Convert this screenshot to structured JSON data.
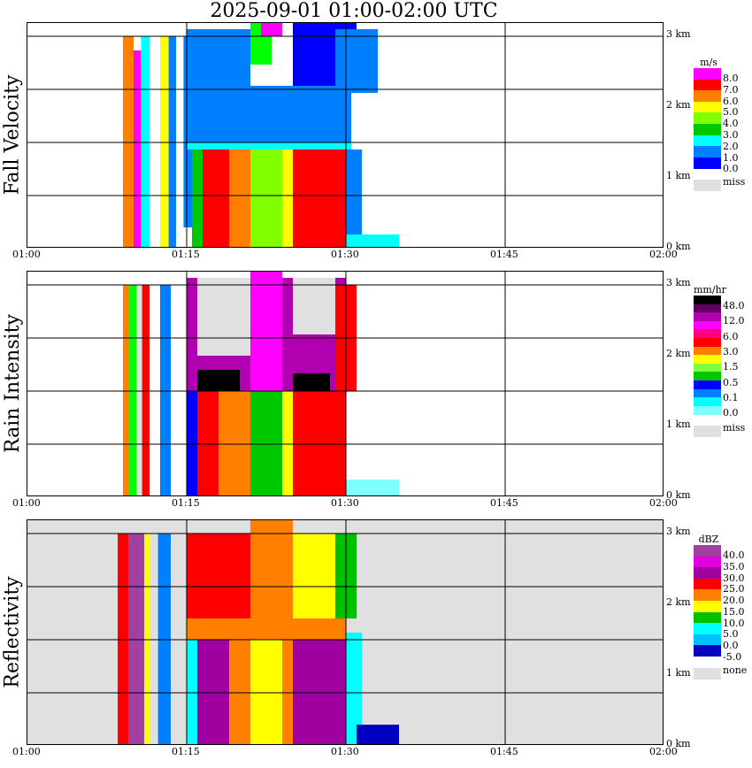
{
  "title": "2025-09-01   01:00-02:00 UTC",
  "chart_data": [
    {
      "type": "heatmap",
      "title": "Fall Velocity",
      "ylabel": "Fall Velocity",
      "x_ticks": [
        "01:00",
        "01:15",
        "01:30",
        "01:45",
        "02:00"
      ],
      "y_ticks": [
        "0 km",
        "1 km",
        "2 km",
        "3 km"
      ],
      "ylim_km": [
        0,
        3.2
      ],
      "colorbar": {
        "unit": "m/s",
        "colors": [
          "#0000ff",
          "#0080ff",
          "#00ffff",
          "#00c800",
          "#80ff00",
          "#ffff00",
          "#ff8000",
          "#ff0000",
          "#ff00ff"
        ],
        "labels": [
          "8.0",
          "7.0",
          "6.0",
          "5.0",
          "4.0",
          "3.0",
          "2.0",
          "1.0",
          "0.0"
        ],
        "missing_label": "miss"
      }
    },
    {
      "type": "heatmap",
      "title": "Rain Intensity",
      "ylabel": "Rain Intensity",
      "x_ticks": [
        "01:00",
        "01:15",
        "01:30",
        "01:45",
        "02:00"
      ],
      "y_ticks": [
        "0 km",
        "1 km",
        "2 km",
        "3 km"
      ],
      "ylim_km": [
        0,
        3.2
      ],
      "colorbar": {
        "unit": "mm/hr",
        "colors": [
          "#80ffff",
          "#00ffff",
          "#0080ff",
          "#0000ff",
          "#00c800",
          "#80ff40",
          "#ffff00",
          "#ff8000",
          "#ff0000",
          "#ff0080",
          "#ff00ff",
          "#b000b0",
          "#600060",
          "#000000"
        ],
        "labels": [
          "48.0",
          "12.0",
          "6.0",
          "3.0",
          "1.5",
          "0.5",
          "0.1",
          "0.0"
        ],
        "missing_label": "miss"
      }
    },
    {
      "type": "heatmap",
      "title": "Reflectivity",
      "ylabel": "Reflectivity",
      "x_ticks": [
        "01:00",
        "01:15",
        "01:30",
        "01:45",
        "02:00"
      ],
      "y_ticks": [
        "0 km",
        "1 km",
        "2 km",
        "3 km"
      ],
      "ylim_km": [
        0,
        3.2
      ],
      "colorbar": {
        "unit": "dBZ",
        "colors": [
          "#0000c0",
          "#00c0ff",
          "#00ffff",
          "#00c000",
          "#ffff00",
          "#ff8000",
          "#ff0000",
          "#a000a0",
          "#e000e0",
          "#a040a0"
        ],
        "labels": [
          "40.0",
          "35.0",
          "30.0",
          "25.0",
          "20.0",
          "15.0",
          "10.0",
          "5.0",
          "0.0",
          "-5.0"
        ],
        "missing_label": "none"
      }
    }
  ]
}
